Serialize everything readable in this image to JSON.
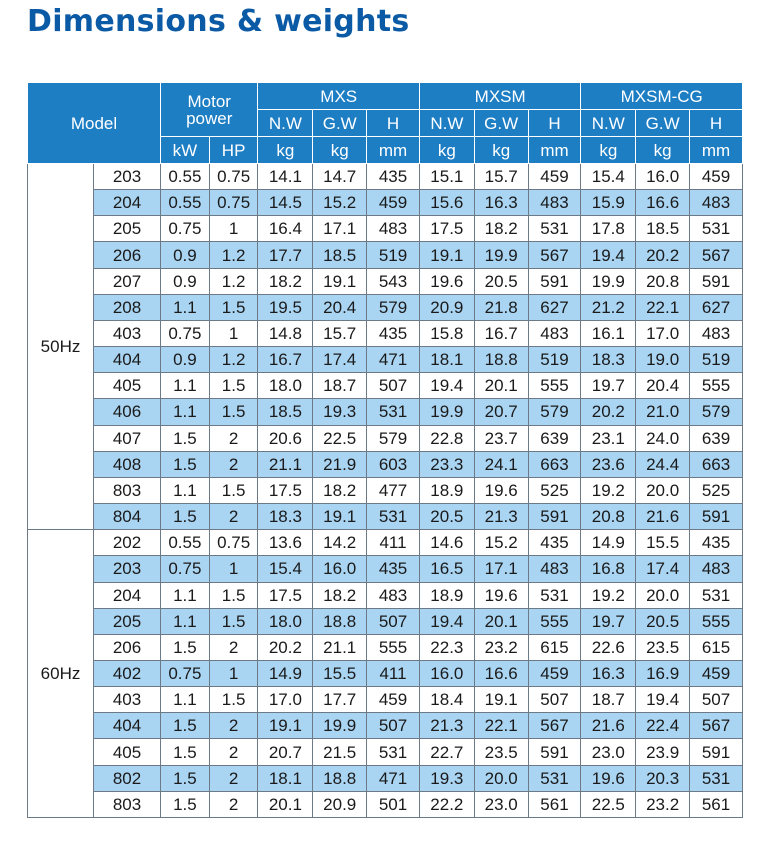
{
  "title": "Dimensions & weights",
  "header": {
    "model": "Model",
    "motor_power": "Motor power",
    "motor_power_line1": "Motor",
    "motor_power_line2": "power",
    "groups": [
      "MXS",
      "MXSM",
      "MXSM-CG"
    ],
    "sub": [
      "N.W",
      "G.W",
      "H"
    ],
    "units": {
      "kw": "kW",
      "hp": "HP",
      "kg": "kg",
      "mm": "mm"
    }
  },
  "colors": {
    "title": "#0a5aa5",
    "header_bg": "#1e7ec4",
    "stripe": "#a9d4f2"
  },
  "sections": [
    {
      "label": "50Hz",
      "rows": [
        [
          "203",
          "0.55",
          "0.75",
          "14.1",
          "14.7",
          "435",
          "15.1",
          "15.7",
          "459",
          "15.4",
          "16.0",
          "459"
        ],
        [
          "204",
          "0.55",
          "0.75",
          "14.5",
          "15.2",
          "459",
          "15.6",
          "16.3",
          "483",
          "15.9",
          "16.6",
          "483"
        ],
        [
          "205",
          "0.75",
          "1",
          "16.4",
          "17.1",
          "483",
          "17.5",
          "18.2",
          "531",
          "17.8",
          "18.5",
          "531"
        ],
        [
          "206",
          "0.9",
          "1.2",
          "17.7",
          "18.5",
          "519",
          "19.1",
          "19.9",
          "567",
          "19.4",
          "20.2",
          "567"
        ],
        [
          "207",
          "0.9",
          "1.2",
          "18.2",
          "19.1",
          "543",
          "19.6",
          "20.5",
          "591",
          "19.9",
          "20.8",
          "591"
        ],
        [
          "208",
          "1.1",
          "1.5",
          "19.5",
          "20.4",
          "579",
          "20.9",
          "21.8",
          "627",
          "21.2",
          "22.1",
          "627"
        ],
        [
          "403",
          "0.75",
          "1",
          "14.8",
          "15.7",
          "435",
          "15.8",
          "16.7",
          "483",
          "16.1",
          "17.0",
          "483"
        ],
        [
          "404",
          "0.9",
          "1.2",
          "16.7",
          "17.4",
          "471",
          "18.1",
          "18.8",
          "519",
          "18.3",
          "19.0",
          "519"
        ],
        [
          "405",
          "1.1",
          "1.5",
          "18.0",
          "18.7",
          "507",
          "19.4",
          "20.1",
          "555",
          "19.7",
          "20.4",
          "555"
        ],
        [
          "406",
          "1.1",
          "1.5",
          "18.5",
          "19.3",
          "531",
          "19.9",
          "20.7",
          "579",
          "20.2",
          "21.0",
          "579"
        ],
        [
          "407",
          "1.5",
          "2",
          "20.6",
          "22.5",
          "579",
          "22.8",
          "23.7",
          "639",
          "23.1",
          "24.0",
          "639"
        ],
        [
          "408",
          "1.5",
          "2",
          "21.1",
          "21.9",
          "603",
          "23.3",
          "24.1",
          "663",
          "23.6",
          "24.4",
          "663"
        ],
        [
          "803",
          "1.1",
          "1.5",
          "17.5",
          "18.2",
          "477",
          "18.9",
          "19.6",
          "525",
          "19.2",
          "20.0",
          "525"
        ],
        [
          "804",
          "1.5",
          "2",
          "18.3",
          "19.1",
          "531",
          "20.5",
          "21.3",
          "591",
          "20.8",
          "21.6",
          "591"
        ]
      ]
    },
    {
      "label": "60Hz",
      "rows": [
        [
          "202",
          "0.55",
          "0.75",
          "13.6",
          "14.2",
          "411",
          "14.6",
          "15.2",
          "435",
          "14.9",
          "15.5",
          "435"
        ],
        [
          "203",
          "0.75",
          "1",
          "15.4",
          "16.0",
          "435",
          "16.5",
          "17.1",
          "483",
          "16.8",
          "17.4",
          "483"
        ],
        [
          "204",
          "1.1",
          "1.5",
          "17.5",
          "18.2",
          "483",
          "18.9",
          "19.6",
          "531",
          "19.2",
          "20.0",
          "531"
        ],
        [
          "205",
          "1.1",
          "1.5",
          "18.0",
          "18.8",
          "507",
          "19.4",
          "20.1",
          "555",
          "19.7",
          "20.5",
          "555"
        ],
        [
          "206",
          "1.5",
          "2",
          "20.2",
          "21.1",
          "555",
          "22.3",
          "23.2",
          "615",
          "22.6",
          "23.5",
          "615"
        ],
        [
          "402",
          "0.75",
          "1",
          "14.9",
          "15.5",
          "411",
          "16.0",
          "16.6",
          "459",
          "16.3",
          "16.9",
          "459"
        ],
        [
          "403",
          "1.1",
          "1.5",
          "17.0",
          "17.7",
          "459",
          "18.4",
          "19.1",
          "507",
          "18.7",
          "19.4",
          "507"
        ],
        [
          "404",
          "1.5",
          "2",
          "19.1",
          "19.9",
          "507",
          "21.3",
          "22.1",
          "567",
          "21.6",
          "22.4",
          "567"
        ],
        [
          "405",
          "1.5",
          "2",
          "20.7",
          "21.5",
          "531",
          "22.7",
          "23.5",
          "591",
          "23.0",
          "23.9",
          "591"
        ],
        [
          "802",
          "1.5",
          "2",
          "18.1",
          "18.8",
          "471",
          "19.3",
          "20.0",
          "531",
          "19.6",
          "20.3",
          "531"
        ],
        [
          "803",
          "1.5",
          "2",
          "20.1",
          "20.9",
          "501",
          "22.2",
          "23.0",
          "561",
          "22.5",
          "23.2",
          "561"
        ]
      ]
    }
  ]
}
